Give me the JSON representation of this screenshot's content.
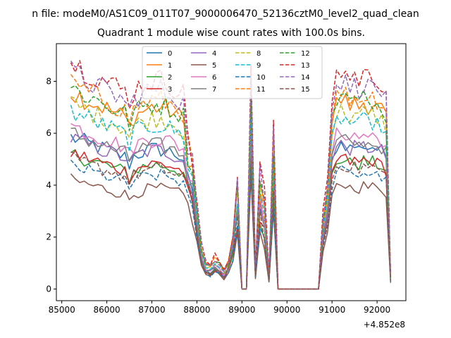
{
  "figure": {
    "suptitle": "n file: modeM0/AS1C09_011T07_9000006470_52136cztM0_level2_quad_clean",
    "offset_label": "+4.852e8"
  },
  "chart_data": {
    "type": "line",
    "title": "Quadrant 1 module wise count rates with 100.0s bins.",
    "xlabel": "",
    "ylabel": "",
    "x_offset": 485200000,
    "xlim": [
      84880,
      92640
    ],
    "ylim": [
      -0.45,
      9.45
    ],
    "xticks": [
      85000,
      86000,
      87000,
      88000,
      89000,
      90000,
      91000,
      92000
    ],
    "yticks": [
      0,
      2,
      4,
      6,
      8
    ],
    "grid": false,
    "legend": {
      "placement": "top-center",
      "ncol": 4
    },
    "x": [
      85200,
      85300,
      85400,
      85500,
      85600,
      85700,
      85800,
      85900,
      86000,
      86100,
      86200,
      86300,
      86400,
      86500,
      86600,
      86700,
      86800,
      86900,
      87000,
      87100,
      87200,
      87300,
      87400,
      87500,
      87600,
      87700,
      87800,
      87900,
      88000,
      88100,
      88200,
      88300,
      88400,
      88500,
      88600,
      88700,
      88800,
      88900,
      89000,
      89100,
      89200,
      89300,
      89400,
      89500,
      89600,
      89700,
      89800,
      89900,
      90000,
      90100,
      90200,
      90300,
      90400,
      90500,
      90600,
      90700,
      90800,
      90900,
      91000,
      91100,
      91200,
      91300,
      91400,
      91500,
      91600,
      91700,
      91800,
      91900,
      92000,
      92100,
      92200,
      92300
    ],
    "gap_x": [
      89000,
      89100,
      89800,
      89900,
      90000,
      90100,
      90200,
      90300,
      90400,
      90500,
      90600,
      90700
    ],
    "active_x": [
      89300,
      89400,
      89500,
      89600,
      89700
    ],
    "series": [
      {
        "name": "0",
        "color": "#1f77b4",
        "dash": "solid",
        "level": 5.85,
        "drop": 4.25
      },
      {
        "name": "1",
        "color": "#ff7f0e",
        "dash": "solid",
        "level": 7.6,
        "drop": 5.6
      },
      {
        "name": "2",
        "color": "#2ca02c",
        "dash": "solid",
        "level": 5.2,
        "drop": 3.85
      },
      {
        "name": "3",
        "color": "#d62728",
        "dash": "solid",
        "level": 5.25,
        "drop": 3.75
      },
      {
        "name": "4",
        "color": "#9467bd",
        "dash": "solid",
        "level": 5.8,
        "drop": 4.4
      },
      {
        "name": "5",
        "color": "#8c564b",
        "dash": "solid",
        "level": 4.2,
        "drop": 3.35
      },
      {
        "name": "6",
        "color": "#e377c2",
        "dash": "solid",
        "level": 6.3,
        "drop": 4.75
      },
      {
        "name": "7",
        "color": "#7f7f7f",
        "dash": "solid",
        "level": 6.0,
        "drop": 4.6
      },
      {
        "name": "8",
        "color": "#bcbd22",
        "dash": "dashed",
        "level": 7.15,
        "drop": 5.2
      },
      {
        "name": "9",
        "color": "#17becf",
        "dash": "dashed",
        "level": 6.85,
        "drop": 5.15
      },
      {
        "name": "10",
        "color": "#1f77b4",
        "dash": "dashed",
        "level": 4.75,
        "drop": 3.5
      },
      {
        "name": "11",
        "color": "#ff7f0e",
        "dash": "dashed",
        "level": 7.9,
        "drop": 5.7
      },
      {
        "name": "12",
        "color": "#2ca02c",
        "dash": "dashed",
        "level": 7.75,
        "drop": 5.7
      },
      {
        "name": "13",
        "color": "#d62728",
        "dash": "dashed",
        "level": 8.75,
        "drop": 6.25
      },
      {
        "name": "14",
        "color": "#9467bd",
        "dash": "dashed",
        "level": 8.35,
        "drop": 6.0
      },
      {
        "name": "15",
        "color": "#8c564b",
        "dash": "dashed",
        "level": 5.0,
        "drop": 3.9
      }
    ]
  }
}
